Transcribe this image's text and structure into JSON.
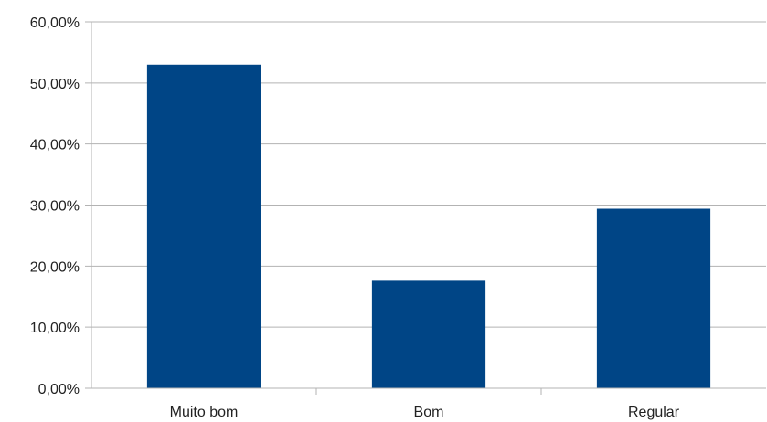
{
  "chart_data": {
    "type": "bar",
    "categories": [
      "Muito bom",
      "Bom",
      "Regular"
    ],
    "values": [
      0.53,
      0.176,
      0.294
    ],
    "ylim": [
      0,
      0.6
    ],
    "y_ticks": [
      0,
      0.1,
      0.2,
      0.3,
      0.4,
      0.5,
      0.6
    ],
    "y_tick_labels": [
      "0,00%",
      "10,00%",
      "20,00%",
      "30,00%",
      "40,00%",
      "50,00%",
      "60,00%"
    ],
    "grid": true,
    "legend": "none",
    "bar_color": "#004586",
    "grid_color": "#b3b3b3"
  }
}
